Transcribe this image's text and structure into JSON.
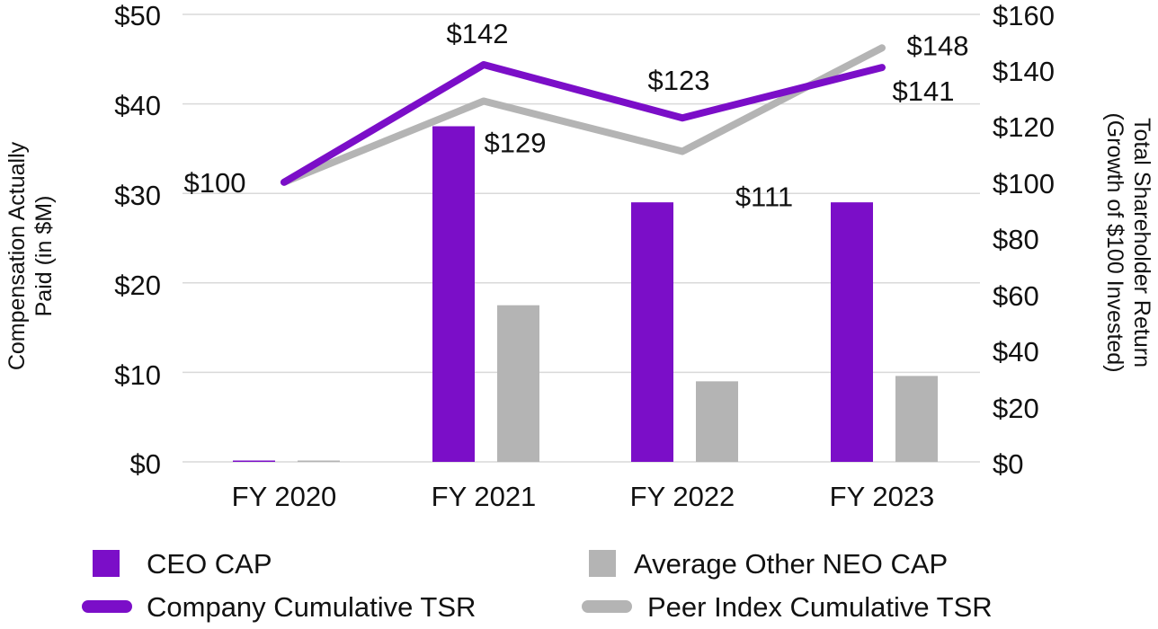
{
  "chart_data": {
    "type": "bar+line",
    "categories": [
      "FY 2020",
      "FY 2021",
      "FY 2022",
      "FY 2023"
    ],
    "bar_series": [
      {
        "name": "CEO CAP",
        "color": "#7b0ec8",
        "values": [
          0,
          37.5,
          29,
          29
        ]
      },
      {
        "name": "Average Other NEO CAP",
        "color": "#b4b4b4",
        "values": [
          0,
          17.5,
          9,
          9.6
        ]
      }
    ],
    "line_series": [
      {
        "name": "Company Cumulative TSR",
        "color": "#7b0ec8",
        "values": [
          100,
          142,
          123,
          141
        ],
        "labels": [
          "$100",
          "$142",
          "$123",
          "$141"
        ]
      },
      {
        "name": "Peer Index Cumulative TSR",
        "color": "#b4b4b4",
        "values": [
          100,
          129,
          111,
          148
        ],
        "labels": [
          "",
          "$129",
          "$111",
          "$148"
        ]
      }
    ],
    "left_axis": {
      "title_lines": [
        "Compensation Actually",
        "Paid (in $M)"
      ],
      "ticks": [
        0,
        10,
        20,
        30,
        40,
        50
      ],
      "tick_labels": [
        "$0",
        "$10",
        "$20",
        "$30",
        "$40",
        "$50"
      ],
      "ylim": [
        0,
        50
      ]
    },
    "right_axis": {
      "title_lines": [
        "Total Shareholder Return",
        "(Growth of $100 Invested)"
      ],
      "ticks": [
        0,
        20,
        40,
        60,
        80,
        100,
        120,
        140,
        160
      ],
      "tick_labels": [
        "$0",
        "$20",
        "$40",
        "$60",
        "$80",
        "$100",
        "$120",
        "$140",
        "$160"
      ],
      "ylim": [
        0,
        160
      ]
    },
    "grid": true,
    "legend": [
      "CEO CAP",
      "Average Other NEO CAP",
      "Company Cumulative TSR",
      "Peer Index Cumulative TSR"
    ],
    "legend_position": "bottom"
  }
}
